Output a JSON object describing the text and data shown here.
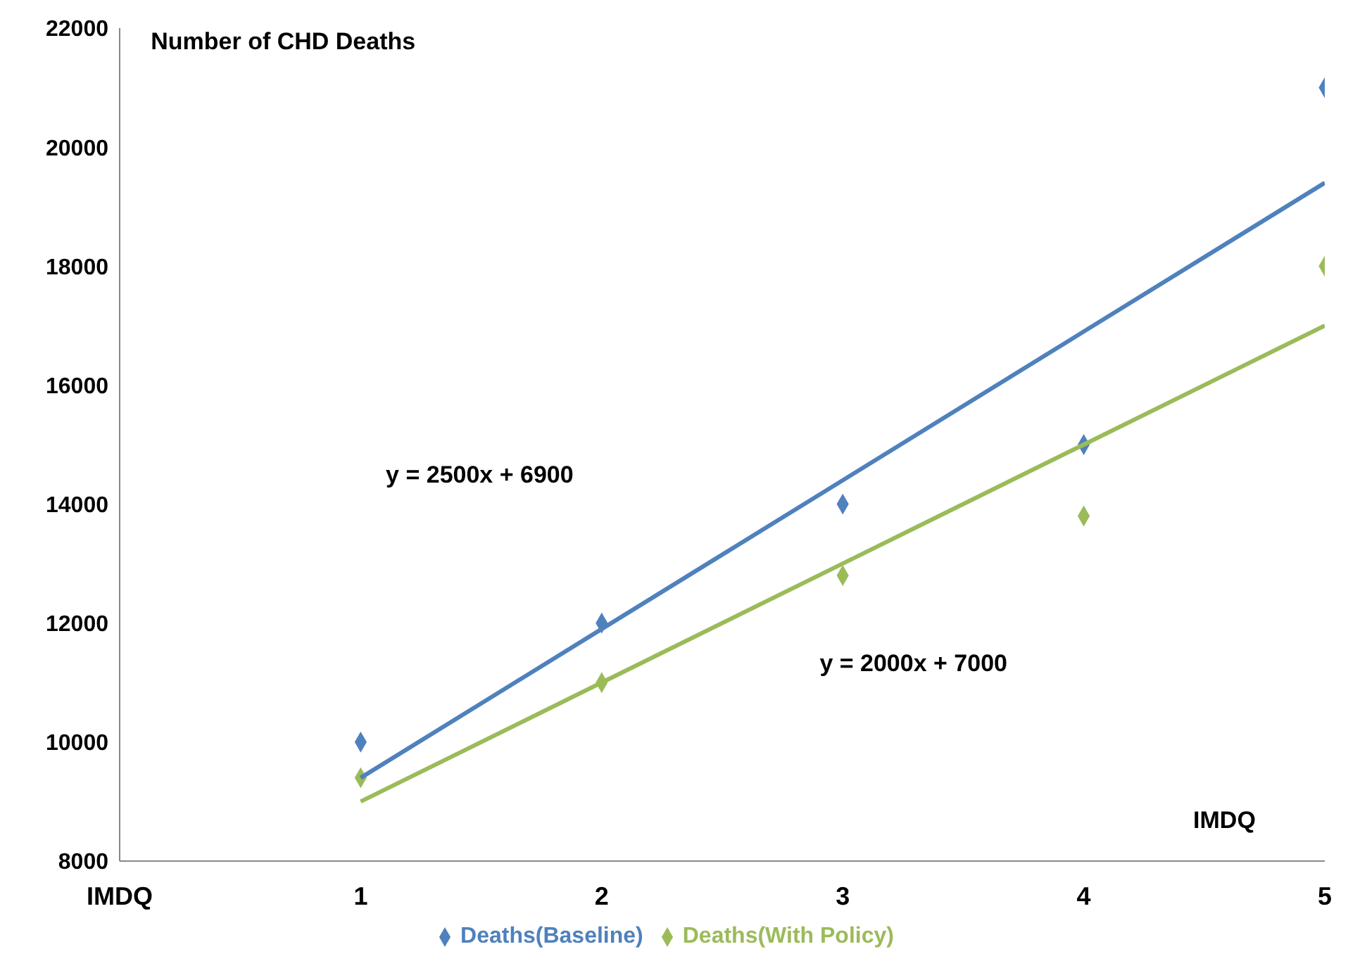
{
  "chart_data": {
    "type": "scatter",
    "xlabel": "IMDQ",
    "ylabel": "Number of CHD Deaths",
    "x": [
      1,
      2,
      3,
      4,
      5
    ],
    "series": [
      {
        "name": "Deaths(Baseline)",
        "color": "#4f81bd",
        "marker": "diamond",
        "values": [
          10000,
          12000,
          14000,
          15000,
          21000
        ]
      },
      {
        "name": "Deaths(With Policy)",
        "color": "#9bbb59",
        "marker": "diamond",
        "values": [
          9400,
          11000,
          12800,
          13800,
          18000
        ]
      },
      {
        "type": "line",
        "color": "#4f81bd",
        "marker": "none",
        "values": [
          9400,
          11900,
          14400,
          16900,
          19400
        ]
      },
      {
        "type": "line",
        "color": "#9bbb59",
        "marker": "none",
        "values": [
          9000,
          11000,
          13000,
          15000,
          17000
        ]
      }
    ],
    "annotations": [
      "y = 2500x + 6900",
      "y = 2000x + 7000"
    ],
    "xlim": [
      0,
      5
    ],
    "xticks": [
      {
        "value": 0,
        "label": "IMDQ"
      },
      1,
      2,
      3,
      4,
      5
    ],
    "ylim": [
      8000,
      22000
    ],
    "yticks": [
      8000,
      10000,
      12000,
      14000,
      16000,
      18000,
      20000,
      22000
    ],
    "grid": false,
    "legend": "bottom"
  }
}
